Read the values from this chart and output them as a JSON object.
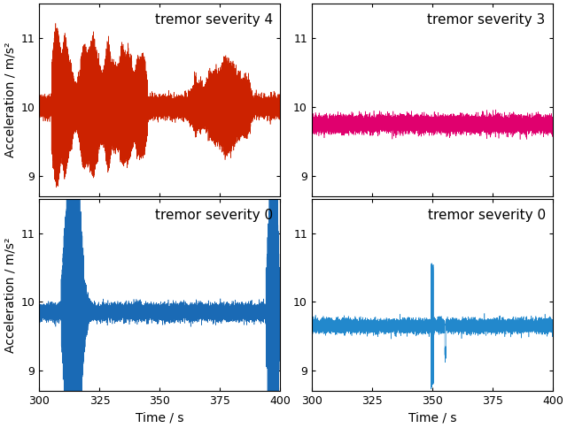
{
  "time_start": 300,
  "time_end": 400,
  "sample_rate": 200,
  "plots": [
    {
      "label": "tremor severity 4",
      "color": "#cc2200",
      "base": 10.0,
      "noise_std": 0.06,
      "ylim": [
        8.7,
        11.5
      ],
      "yticks": [
        9,
        10,
        11
      ]
    },
    {
      "label": "tremor severity 3",
      "color": "#e0006e",
      "base": 9.75,
      "noise_std": 0.055,
      "ylim": [
        8.7,
        11.5
      ],
      "yticks": [
        9,
        10,
        11
      ]
    },
    {
      "label": "tremor severity 0",
      "color": "#1a6ab5",
      "base": 9.85,
      "noise_std": 0.055,
      "ylim": [
        8.7,
        11.5
      ],
      "yticks": [
        9,
        10,
        11
      ]
    },
    {
      "label": "tremor severity 0",
      "color": "#2288cc",
      "base": 9.65,
      "noise_std": 0.045,
      "ylim": [
        8.7,
        11.5
      ],
      "yticks": [
        9,
        10,
        11
      ]
    }
  ],
  "xlabel": "Time / s",
  "ylabel": "Acceleration / m/s²",
  "xlim": [
    300,
    400
  ],
  "xticks": [
    300,
    325,
    350,
    375,
    400
  ],
  "background_color": "#ffffff",
  "label_fontsize": 10,
  "tick_fontsize": 9,
  "annotation_fontsize": 11
}
